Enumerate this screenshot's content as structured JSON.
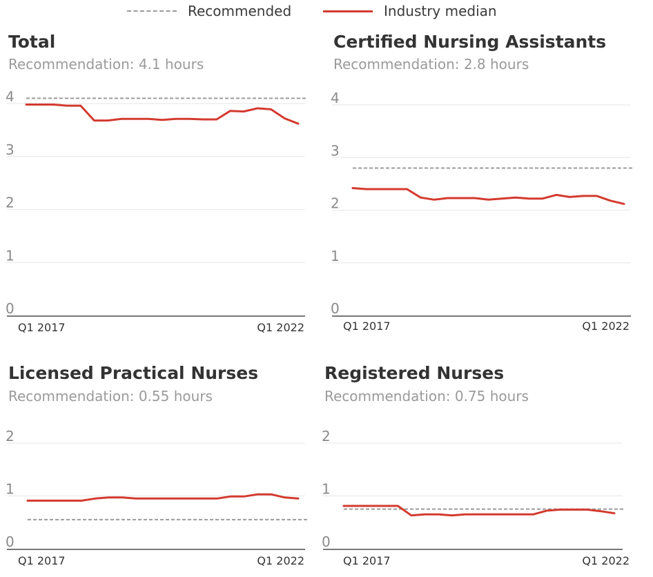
{
  "legend": {
    "recommended_label": "Recommended",
    "median_label": "Industry median",
    "recommended_color": "#9a9a9a",
    "median_color": "#d43a2f"
  },
  "panels": [
    {
      "title": "Total",
      "subtitle": "Recommendation: 4.1 hours"
    },
    {
      "title": "Certified Nursing Assistants",
      "subtitle": "Recommendation: 2.8 hours"
    },
    {
      "title": "Licensed Practical Nurses",
      "subtitle": "Recommendation: 0.55 hours"
    },
    {
      "title": "Registered Nurses",
      "subtitle": "Recommendation: 0.75 hours"
    }
  ],
  "chart_data": [
    {
      "type": "line",
      "title": "Total",
      "subtitle": "Recommendation: 4.1 hours",
      "ylim": [
        0,
        4
      ],
      "yticks": [
        "0",
        "1",
        "2",
        "3",
        "4"
      ],
      "x_tick_labels": [
        "Q1 2017",
        "Q1 2022"
      ],
      "x_periods": 22,
      "grid": true,
      "recommended": 4.1,
      "series": [
        {
          "name": "Industry median",
          "values": [
            3.98,
            3.98,
            3.98,
            3.96,
            3.96,
            3.68,
            3.68,
            3.71,
            3.71,
            3.71,
            3.69,
            3.71,
            3.71,
            3.7,
            3.7,
            3.86,
            3.85,
            3.91,
            3.89,
            3.72,
            3.62
          ]
        }
      ]
    },
    {
      "type": "line",
      "title": "Certified Nursing Assistants",
      "subtitle": "Recommendation: 2.8 hours",
      "ylim": [
        0,
        4
      ],
      "yticks": [
        "0",
        "1",
        "2",
        "3",
        "4"
      ],
      "x_tick_labels": [
        "Q1 2017",
        "Q1 2022"
      ],
      "x_periods": 22,
      "grid": true,
      "recommended": 2.8,
      "series": [
        {
          "name": "Industry median",
          "values": [
            2.42,
            2.4,
            2.4,
            2.4,
            2.4,
            2.24,
            2.2,
            2.23,
            2.23,
            2.23,
            2.2,
            2.22,
            2.24,
            2.22,
            2.22,
            2.29,
            2.25,
            2.27,
            2.27,
            2.18,
            2.12
          ]
        }
      ]
    },
    {
      "type": "line",
      "title": "Licensed Practical Nurses",
      "subtitle": "Recommendation: 0.55 hours",
      "ylim": [
        0,
        2
      ],
      "yticks": [
        "0",
        "1",
        "2"
      ],
      "x_tick_labels": [
        "Q1 2017",
        "Q1 2022"
      ],
      "x_periods": 22,
      "grid": true,
      "recommended": 0.55,
      "series": [
        {
          "name": "Industry median",
          "values": [
            0.91,
            0.91,
            0.91,
            0.91,
            0.91,
            0.95,
            0.97,
            0.97,
            0.95,
            0.95,
            0.95,
            0.95,
            0.95,
            0.95,
            0.95,
            0.99,
            0.99,
            1.03,
            1.03,
            0.97,
            0.95
          ]
        }
      ]
    },
    {
      "type": "line",
      "title": "Registered Nurses",
      "subtitle": "Recommendation: 0.75 hours",
      "ylim": [
        0,
        2
      ],
      "yticks": [
        "0",
        "1",
        "2"
      ],
      "x_tick_labels": [
        "Q1 2017",
        "Q1 2022"
      ],
      "x_periods": 22,
      "grid": true,
      "recommended": 0.75,
      "series": [
        {
          "name": "Industry median",
          "values": [
            0.81,
            0.81,
            0.81,
            0.81,
            0.81,
            0.63,
            0.65,
            0.65,
            0.63,
            0.65,
            0.65,
            0.65,
            0.65,
            0.65,
            0.65,
            0.72,
            0.74,
            0.74,
            0.74,
            0.71,
            0.67
          ]
        }
      ]
    }
  ]
}
